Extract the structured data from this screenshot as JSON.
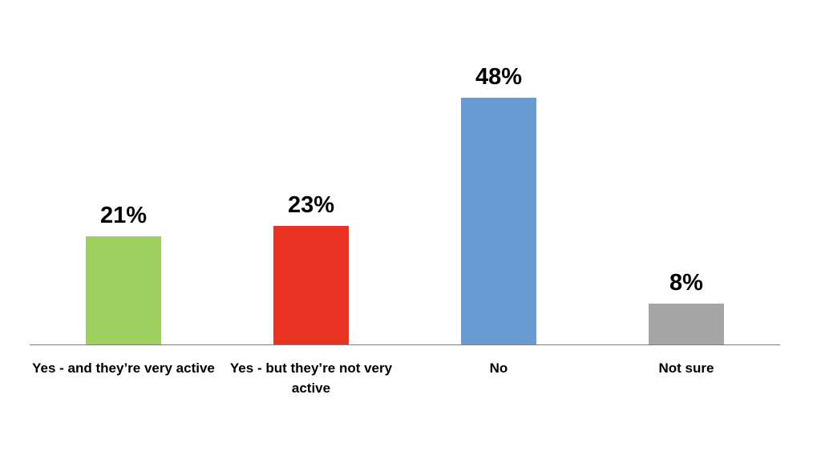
{
  "chart_data": {
    "type": "bar",
    "categories": [
      "Yes - and they’re very active",
      "Yes - but they’re not very active",
      "No",
      "Not sure"
    ],
    "values": [
      21,
      23,
      48,
      8
    ],
    "value_labels": [
      "21%",
      "23%",
      "48%",
      "8%"
    ],
    "colors": [
      "#9fcf5f",
      "#e83323",
      "#6a9ad2",
      "#a5a5a5"
    ]
  }
}
